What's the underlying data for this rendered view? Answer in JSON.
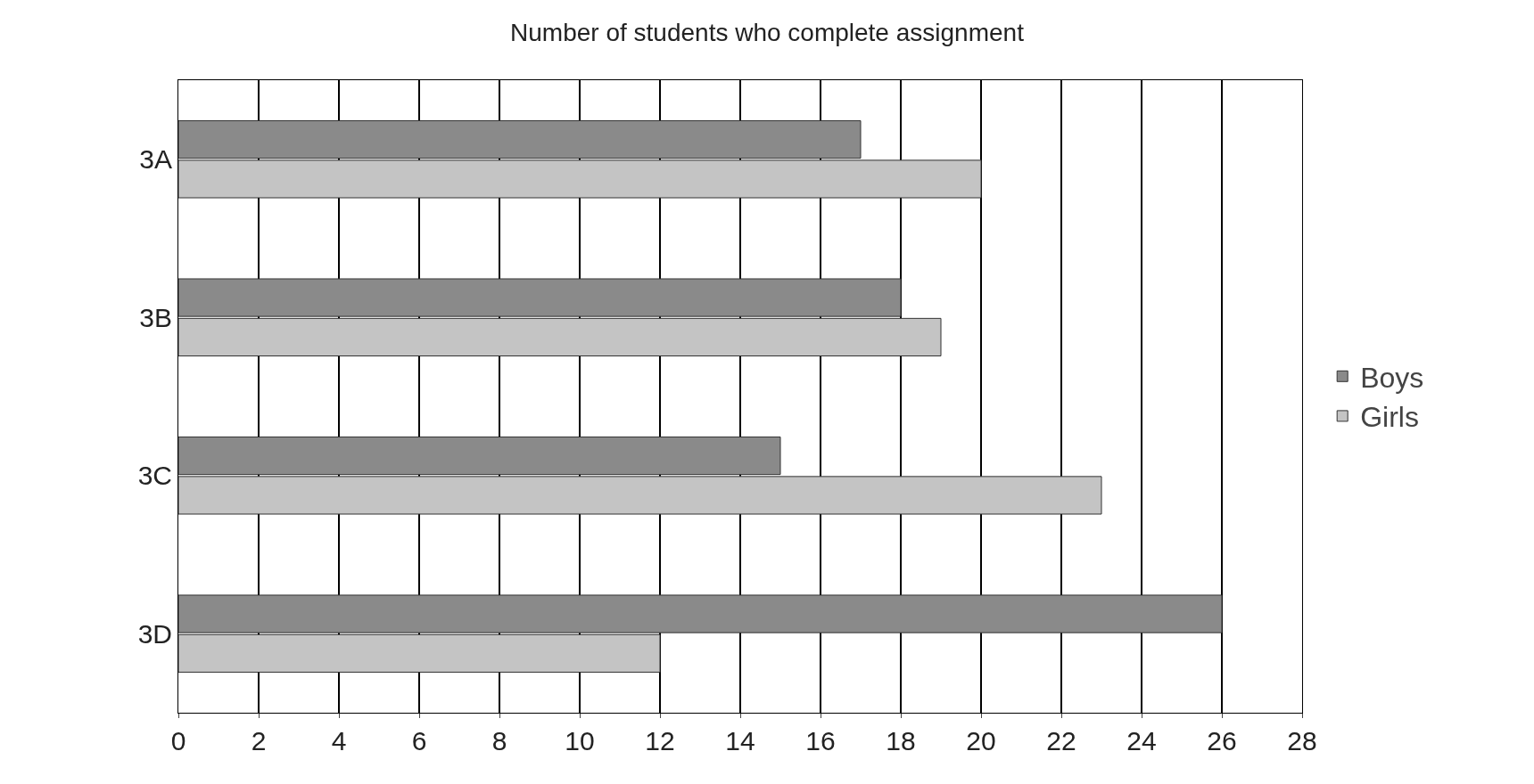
{
  "chart_data": {
    "type": "bar",
    "orientation": "horizontal",
    "title": "Number of students who complete assignment",
    "categories": [
      "3A",
      "3B",
      "3C",
      "3D"
    ],
    "series": [
      {
        "name": "Boys",
        "color": "#8a8a8a",
        "values": [
          17,
          18,
          15,
          26
        ]
      },
      {
        "name": "Girls",
        "color": "#c4c4c4",
        "values": [
          20,
          19,
          23,
          12
        ]
      }
    ],
    "xlim": [
      0,
      28
    ],
    "xticks": [
      0,
      2,
      4,
      6,
      8,
      10,
      12,
      14,
      16,
      18,
      20,
      22,
      24,
      26,
      28
    ],
    "grid": "x",
    "legend": "right"
  }
}
